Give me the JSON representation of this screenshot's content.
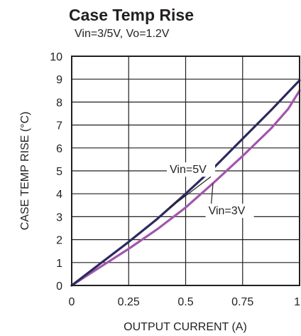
{
  "chart_data": {
    "type": "line",
    "title": "Case Temp Rise",
    "subtitle": "Vin=3/5V, Vo=1.2V",
    "xlabel": "OUTPUT CURRENT (A)",
    "ylabel": "CASE TEMP RISE (°C)",
    "xlim": [
      0,
      1
    ],
    "ylim": [
      0,
      10
    ],
    "x_ticks": [
      0,
      0.25,
      0.5,
      0.75,
      1
    ],
    "x_tick_labels": [
      "0",
      "0.25",
      "0.5",
      "0.75",
      "1"
    ],
    "y_ticks": [
      0,
      1,
      2,
      3,
      4,
      5,
      6,
      7,
      8,
      9,
      10
    ],
    "y_tick_labels": [
      "0",
      "1",
      "2",
      "3",
      "4",
      "5",
      "6",
      "7",
      "8",
      "9",
      "10"
    ],
    "grid": true,
    "series": [
      {
        "name": "Vin=5V",
        "color": "#2b2a5e",
        "x": [
          0,
          0.125,
          0.25,
          0.375,
          0.5,
          0.625,
          0.75,
          0.875,
          1.0
        ],
        "y": [
          0,
          0.95,
          1.9,
          2.9,
          4.0,
          5.15,
          6.4,
          7.65,
          8.95
        ]
      },
      {
        "name": "Vin=3V",
        "color": "#a356ac",
        "x": [
          0,
          0.125,
          0.25,
          0.375,
          0.5,
          0.625,
          0.75,
          0.875,
          0.95,
          1.0
        ],
        "y": [
          0,
          0.8,
          1.6,
          2.45,
          3.4,
          4.5,
          5.65,
          6.85,
          7.7,
          8.5
        ]
      }
    ],
    "annotations": [
      {
        "text": "Vin=5V",
        "series": "Vin=5V",
        "x": 0.43,
        "y": 4.9
      },
      {
        "text": "Vin=3V",
        "series": "Vin=3V",
        "x": 0.6,
        "y": 3.1
      }
    ]
  }
}
